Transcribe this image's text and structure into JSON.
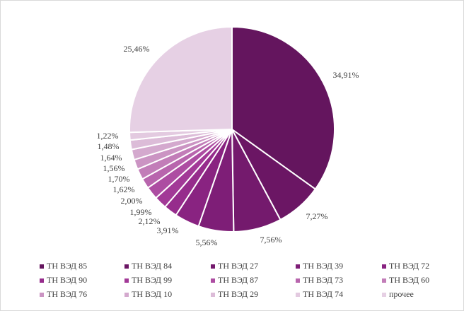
{
  "chart_data": {
    "type": "pie",
    "title": "",
    "start_angle_deg": 0,
    "direction": "clockwise",
    "slices": [
      {
        "name": "ТН ВЭД 85",
        "value": 34.91,
        "label": "34,91%",
        "color": "#64155e"
      },
      {
        "name": "ТН ВЭД 84",
        "value": 7.27,
        "label": "7,27%",
        "color": "#6b1664"
      },
      {
        "name": "ТН ВЭД 27",
        "value": 7.56,
        "label": "7,56%",
        "color": "#741a6d"
      },
      {
        "name": "ТН ВЭД 39",
        "value": 5.56,
        "label": "5,56%",
        "color": "#7e1e77"
      },
      {
        "name": "ТН ВЭД 72",
        "value": 3.91,
        "label": "3,91%",
        "color": "#892381"
      },
      {
        "name": "ТН ВЭД 90",
        "value": 2.12,
        "label": "2,12%",
        "color": "#962c8c"
      },
      {
        "name": "ТН ВЭД 99",
        "value": 1.99,
        "label": "1,99%",
        "color": "#a23997"
      },
      {
        "name": "ТН ВЭД 87",
        "value": 2.0,
        "label": "2,00%",
        "color": "#ad4da2"
      },
      {
        "name": "ТН ВЭД 73",
        "value": 1.62,
        "label": "1,62%",
        "color": "#b865ad"
      },
      {
        "name": "ТН ВЭД 60",
        "value": 1.7,
        "label": "1,70%",
        "color": "#c27db8"
      },
      {
        "name": "ТН ВЭД 76",
        "value": 1.56,
        "label": "1,56%",
        "color": "#cb94c3"
      },
      {
        "name": "ТН ВЭД 10",
        "value": 1.64,
        "label": "1,64%",
        "color": "#d4a9ce"
      },
      {
        "name": "ТН ВЭД 29",
        "value": 1.48,
        "label": "1,48%",
        "color": "#dcbcd8"
      },
      {
        "name": "ТН ВЭД 74",
        "value": 1.22,
        "label": "1,22%",
        "color": "#e3cae0"
      },
      {
        "name": "прочее",
        "value": 25.46,
        "label": "25,46%",
        "color": "#e6d0e4"
      }
    ],
    "legend": {
      "placement": "bottom",
      "columns": 5,
      "items": [
        "ТН ВЭД 85",
        "ТН ВЭД 84",
        "ТН ВЭД 27",
        "ТН ВЭД 39",
        "ТН ВЭД 72",
        "ТН ВЭД 90",
        "ТН ВЭД 99",
        "ТН ВЭД 87",
        "ТН ВЭД 73",
        "ТН ВЭД 60",
        "ТН ВЭД 76",
        "ТН ВЭД 10",
        "ТН ВЭД 29",
        "ТН ВЭД 74",
        "прочее"
      ]
    }
  }
}
